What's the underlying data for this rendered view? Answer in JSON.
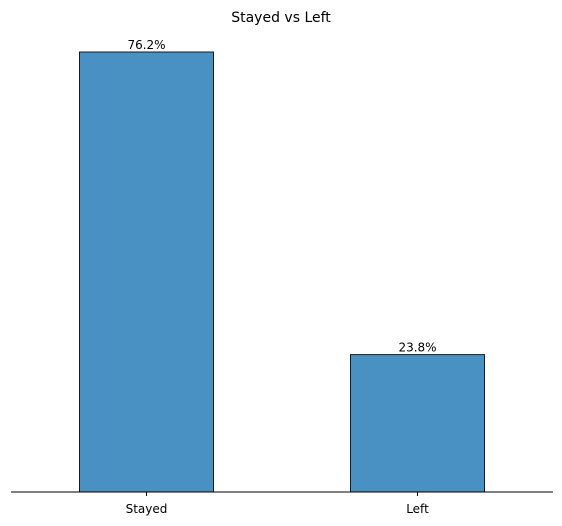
{
  "chart_data": {
    "type": "bar",
    "title": "Stayed vs Left",
    "categories": [
      "Stayed",
      "Left"
    ],
    "values": [
      76.2,
      23.8
    ],
    "data_labels": [
      "76.2%",
      "23.8%"
    ],
    "unit": "%",
    "ylim": [
      0,
      80
    ],
    "y_axis_visible": false,
    "grid": false,
    "legend": "none",
    "bar_color": "#4a91c3",
    "bar_edge_color": "#1a1a1a"
  }
}
